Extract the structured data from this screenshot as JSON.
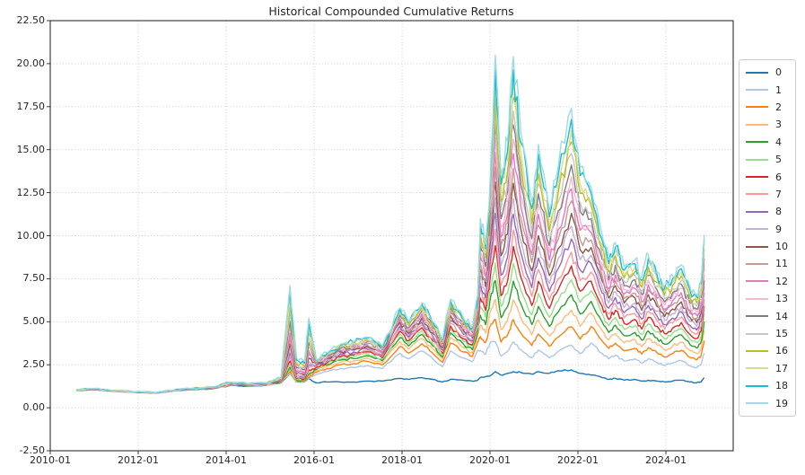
{
  "figure": {
    "background": "#ffffff"
  },
  "chart_data": {
    "type": "line",
    "title": "Historical Compounded Cumulative Returns",
    "xlabel": "",
    "ylabel": "",
    "grid": "dotted",
    "legend_position": "right outside",
    "xlim": [
      2010.0,
      2025.53
    ],
    "ylim": [
      -2.5,
      22.5
    ],
    "x_ticks": [
      {
        "value": 2010.0,
        "label": "2010-01"
      },
      {
        "value": 2012.0,
        "label": "2012-01"
      },
      {
        "value": 2014.0,
        "label": "2014-01"
      },
      {
        "value": 2016.0,
        "label": "2016-01"
      },
      {
        "value": 2018.0,
        "label": "2018-01"
      },
      {
        "value": 2020.0,
        "label": "2020-01"
      },
      {
        "value": 2022.0,
        "label": "2022-01"
      },
      {
        "value": 2024.0,
        "label": "2024-01"
      }
    ],
    "y_ticks": [
      {
        "value": -2.5,
        "label": "-2.50"
      },
      {
        "value": 0.0,
        "label": "0.00"
      },
      {
        "value": 2.5,
        "label": "2.50"
      },
      {
        "value": 5.0,
        "label": "5.00"
      },
      {
        "value": 7.5,
        "label": "7.50"
      },
      {
        "value": 10.0,
        "label": "10.00"
      },
      {
        "value": 12.5,
        "label": "12.50"
      },
      {
        "value": 15.0,
        "label": "15.00"
      },
      {
        "value": 17.5,
        "label": "17.50"
      },
      {
        "value": 20.0,
        "label": "20.00"
      },
      {
        "value": 22.5,
        "label": "22.50"
      }
    ],
    "x": [
      2010.6,
      2011.0,
      2011.4,
      2011.9,
      2012.4,
      2012.8,
      2013.2,
      2013.7,
      2014.1,
      2014.5,
      2014.9,
      2015.25,
      2015.45,
      2015.6,
      2015.78,
      2015.88,
      2016.05,
      2016.3,
      2016.6,
      2016.9,
      2017.2,
      2017.55,
      2017.95,
      2018.15,
      2018.45,
      2018.7,
      2018.92,
      2019.1,
      2019.4,
      2019.6,
      2019.72,
      2019.78,
      2019.9,
      2020.0,
      2020.12,
      2020.25,
      2020.4,
      2020.53,
      2020.7,
      2020.95,
      2021.1,
      2021.35,
      2021.55,
      2021.85,
      2022.05,
      2022.3,
      2022.55,
      2022.7,
      2022.85,
      2023.05,
      2023.3,
      2023.45,
      2023.6,
      2023.8,
      2023.97,
      2024.15,
      2024.35,
      2024.55,
      2024.7,
      2024.8,
      2024.87
    ],
    "base_series_values": [
      1.0,
      1.05,
      0.97,
      0.9,
      0.85,
      0.98,
      1.05,
      1.1,
      1.3,
      1.25,
      1.3,
      1.45,
      2.0,
      1.5,
      1.5,
      1.7,
      1.45,
      1.5,
      1.5,
      1.5,
      1.55,
      1.55,
      1.7,
      1.65,
      1.75,
      1.65,
      1.5,
      1.65,
      1.6,
      1.55,
      1.6,
      1.75,
      1.8,
      1.85,
      2.1,
      1.9,
      2.0,
      2.1,
      2.05,
      1.95,
      2.1,
      2.0,
      2.15,
      2.2,
      2.0,
      1.9,
      1.75,
      1.65,
      1.7,
      1.6,
      1.65,
      1.55,
      1.6,
      1.55,
      1.5,
      1.55,
      1.6,
      1.5,
      1.45,
      1.5,
      1.75
    ],
    "top_series_values": [
      1.05,
      1.12,
      1.0,
      0.93,
      0.88,
      1.02,
      1.12,
      1.22,
      1.5,
      1.4,
      1.45,
      1.8,
      7.1,
      2.9,
      2.7,
      5.2,
      2.8,
      3.2,
      3.7,
      3.85,
      4.1,
      3.6,
      5.8,
      5.0,
      6.1,
      5.0,
      4.0,
      6.3,
      5.2,
      4.7,
      6.5,
      11.0,
      9.5,
      13.0,
      20.5,
      13.5,
      15.5,
      20.4,
      16.0,
      12.0,
      15.3,
      11.5,
      14.0,
      17.4,
      14.0,
      12.8,
      10.0,
      8.6,
      9.6,
      8.2,
      8.6,
      7.6,
      8.9,
      7.9,
      7.1,
      7.7,
      8.3,
      7.0,
      6.6,
      7.4,
      10.05
    ],
    "spread_exponent": [
      1,
      1,
      1,
      1,
      1,
      1,
      1,
      1,
      1,
      1,
      1,
      1.2,
      1.7,
      1.7,
      1.7,
      1.7,
      0.35,
      0.35,
      0.35,
      0.35,
      0.35,
      0.35,
      0.35,
      0.35,
      0.35,
      0.35,
      0.35,
      0.35,
      0.35,
      0.35,
      0.35,
      0.6,
      0.6,
      0.6,
      0.8,
      0.8,
      0.8,
      0.8,
      0.8,
      0.8,
      0.8,
      0.8,
      0.8,
      0.8,
      0.8,
      0.6,
      0.6,
      0.6,
      0.6,
      0.6,
      0.6,
      0.6,
      0.6,
      0.6,
      0.6,
      0.6,
      0.6,
      0.6,
      0.6,
      0.6,
      0.6
    ],
    "series_model": "value[i][k] = base_series_values[k] + (top_series_values[k]-base_series_values[k]) * rank_fraction[i]^spread_exponent[k]",
    "series": [
      {
        "label": "0",
        "color": "#1f77b4",
        "rank_fraction": 0.0
      },
      {
        "label": "1",
        "color": "#aec7e8",
        "rank_fraction": 0.0526
      },
      {
        "label": "2",
        "color": "#ff7f0e",
        "rank_fraction": 0.1053
      },
      {
        "label": "3",
        "color": "#ffbb78",
        "rank_fraction": 0.1579
      },
      {
        "label": "4",
        "color": "#2ca02c",
        "rank_fraction": 0.2105
      },
      {
        "label": "5",
        "color": "#98df8a",
        "rank_fraction": 0.2632
      },
      {
        "label": "6",
        "color": "#d62728",
        "rank_fraction": 0.3158
      },
      {
        "label": "7",
        "color": "#ff9896",
        "rank_fraction": 0.3684
      },
      {
        "label": "8",
        "color": "#9467bd",
        "rank_fraction": 0.4211
      },
      {
        "label": "9",
        "color": "#c5b0d5",
        "rank_fraction": 0.4737
      },
      {
        "label": "10",
        "color": "#8c564b",
        "rank_fraction": 0.5263
      },
      {
        "label": "11",
        "color": "#c49c94",
        "rank_fraction": 0.5789
      },
      {
        "label": "12",
        "color": "#e377c2",
        "rank_fraction": 0.6316
      },
      {
        "label": "13",
        "color": "#f7b6d2",
        "rank_fraction": 0.6842
      },
      {
        "label": "14",
        "color": "#7f7f7f",
        "rank_fraction": 0.7368
      },
      {
        "label": "15",
        "color": "#c7c7c7",
        "rank_fraction": 0.7895
      },
      {
        "label": "16",
        "color": "#bcbd22",
        "rank_fraction": 0.8421
      },
      {
        "label": "17",
        "color": "#dbdb8d",
        "rank_fraction": 0.8947
      },
      {
        "label": "18",
        "color": "#17becf",
        "rank_fraction": 0.9474
      },
      {
        "label": "19",
        "color": "#9edae5",
        "rank_fraction": 1.0
      }
    ]
  }
}
